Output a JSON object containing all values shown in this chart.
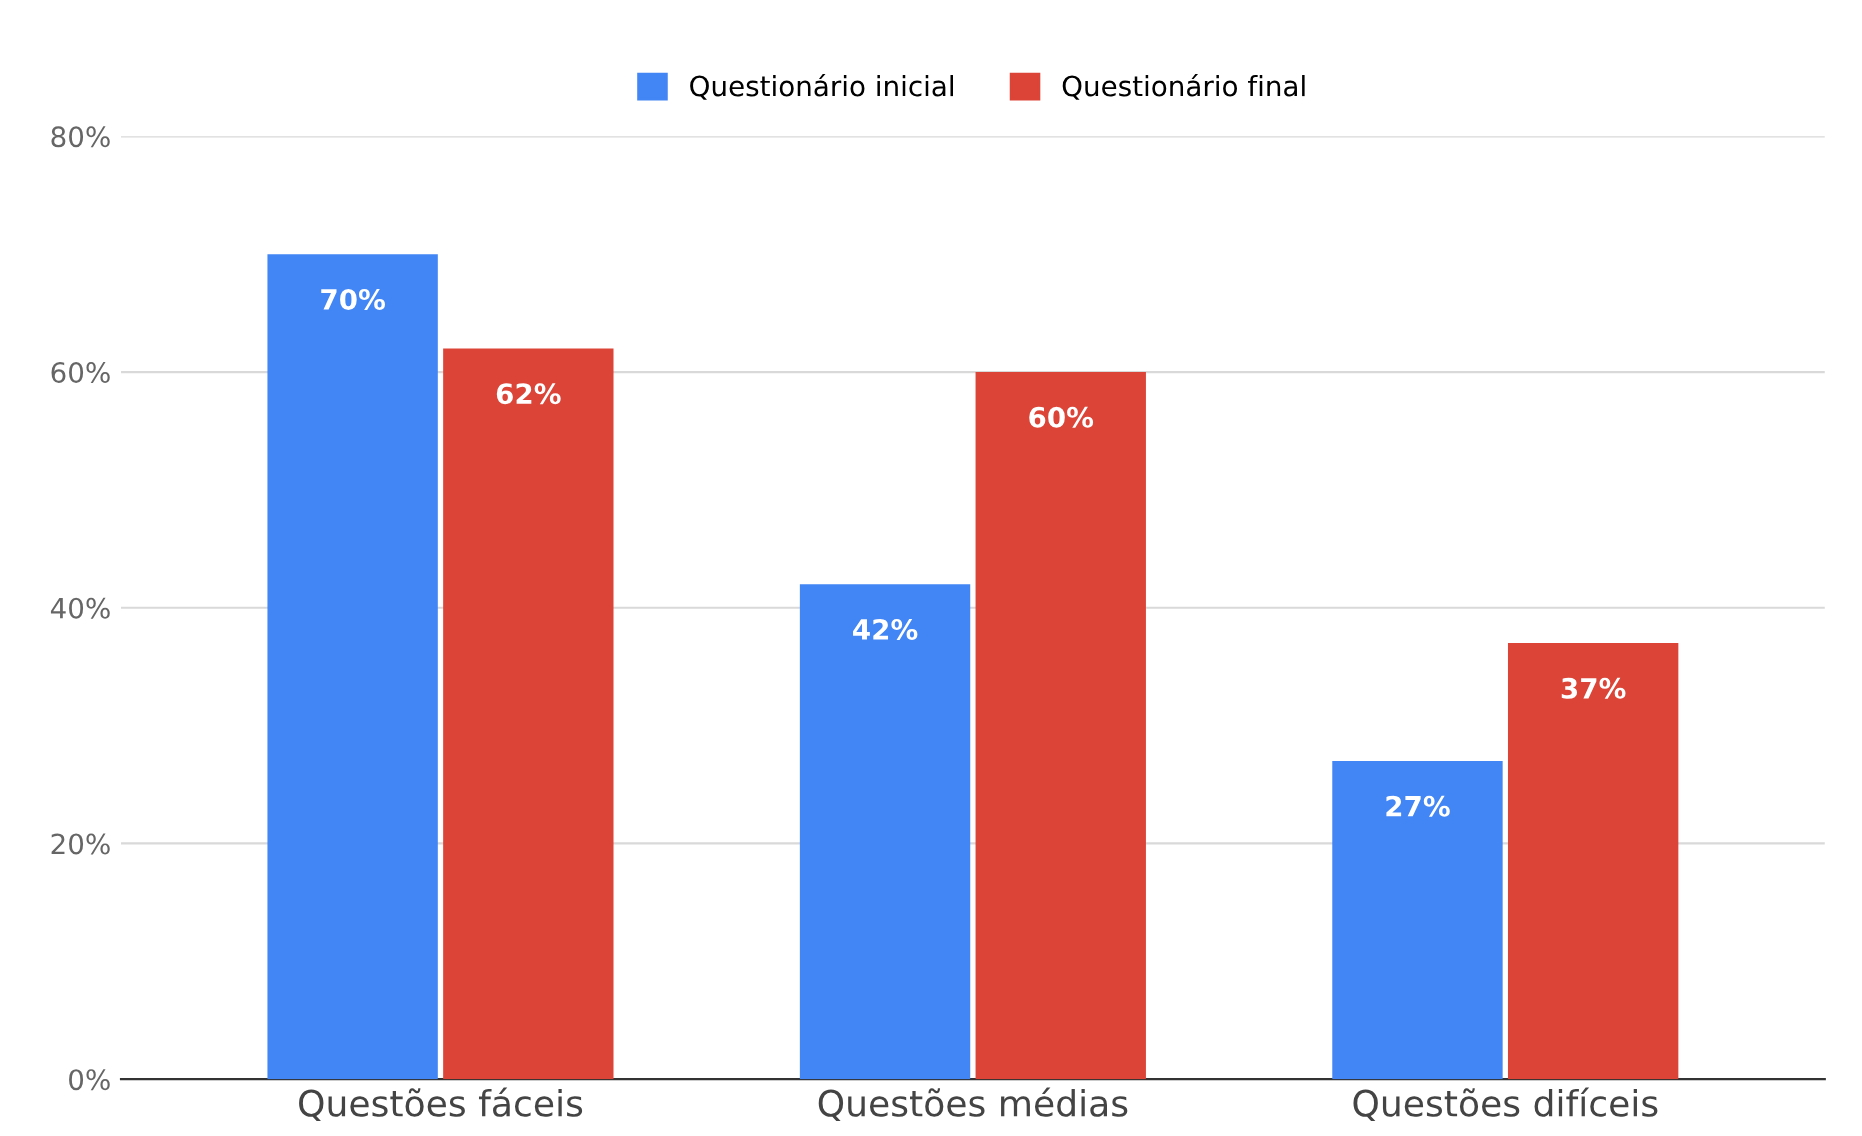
{
  "chart_data": {
    "type": "bar",
    "categories": [
      "Questões fáceis",
      "Questões médias",
      "Questões difíceis"
    ],
    "series": [
      {
        "name": "Questionário inicial",
        "color": "#4285f4",
        "values": [
          70,
          42,
          27
        ],
        "value_labels": [
          "70%",
          "42%",
          "27%"
        ]
      },
      {
        "name": "Questionário final",
        "color": "#db4437",
        "values": [
          62,
          60,
          37
        ],
        "value_labels": [
          "62%",
          "60%",
          "37%"
        ]
      }
    ],
    "ylim": [
      0,
      80
    ],
    "yticks": [
      {
        "value": 0,
        "label": "0%"
      },
      {
        "value": 20,
        "label": "20%"
      },
      {
        "value": 40,
        "label": "40%"
      },
      {
        "value": 60,
        "label": "60%"
      },
      {
        "value": 80,
        "label": "80%"
      }
    ],
    "grid": "y",
    "legend": "top"
  }
}
